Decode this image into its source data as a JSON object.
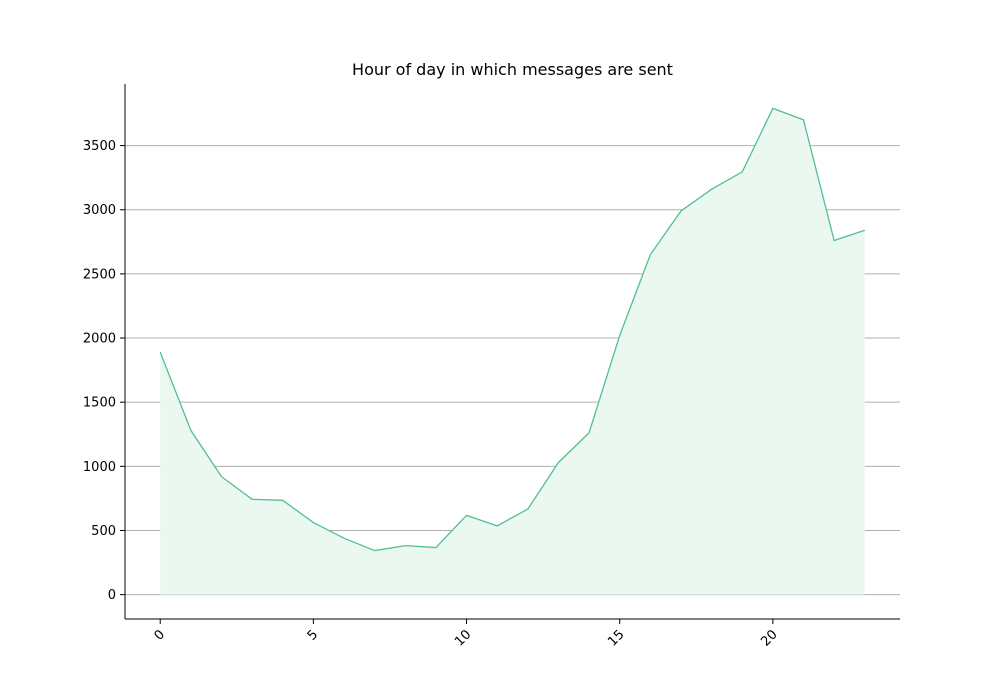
{
  "chart_data": {
    "type": "area",
    "title": "Hour of day in which messages are sent",
    "xlabel": "",
    "ylabel": "",
    "x": [
      0,
      1,
      2,
      3,
      4,
      5,
      6,
      7,
      8,
      9,
      10,
      11,
      12,
      13,
      14,
      15,
      16,
      17,
      18,
      19,
      20,
      21,
      22,
      23
    ],
    "series": [
      {
        "values": [
          1890,
          1280,
          920,
          743,
          735,
          562,
          440,
          343,
          382,
          367,
          618,
          536,
          667,
          1030,
          1262,
          2020,
          2650,
          2990,
          3160,
          3295,
          3790,
          3700,
          2760,
          2840
        ]
      }
    ],
    "xticks": [
      0,
      5,
      10,
      15,
      20
    ],
    "xtick_labels": [
      "0",
      "5",
      "10",
      "15",
      "20"
    ],
    "yticks": [
      0,
      500,
      1000,
      1500,
      2000,
      2500,
      3000,
      3500
    ],
    "ytick_labels": [
      "0",
      "500",
      "1000",
      "1500",
      "2000",
      "2500",
      "3000",
      "3500"
    ],
    "xlim": [
      -1.15,
      24.15
    ],
    "ylim": [
      -190,
      3980
    ],
    "grid": {
      "y": true,
      "x": false
    },
    "colors": {
      "line": "#52c08f",
      "fill": "#ebf7f1",
      "grid": "#b0b0b0",
      "axis": "#000000"
    }
  }
}
